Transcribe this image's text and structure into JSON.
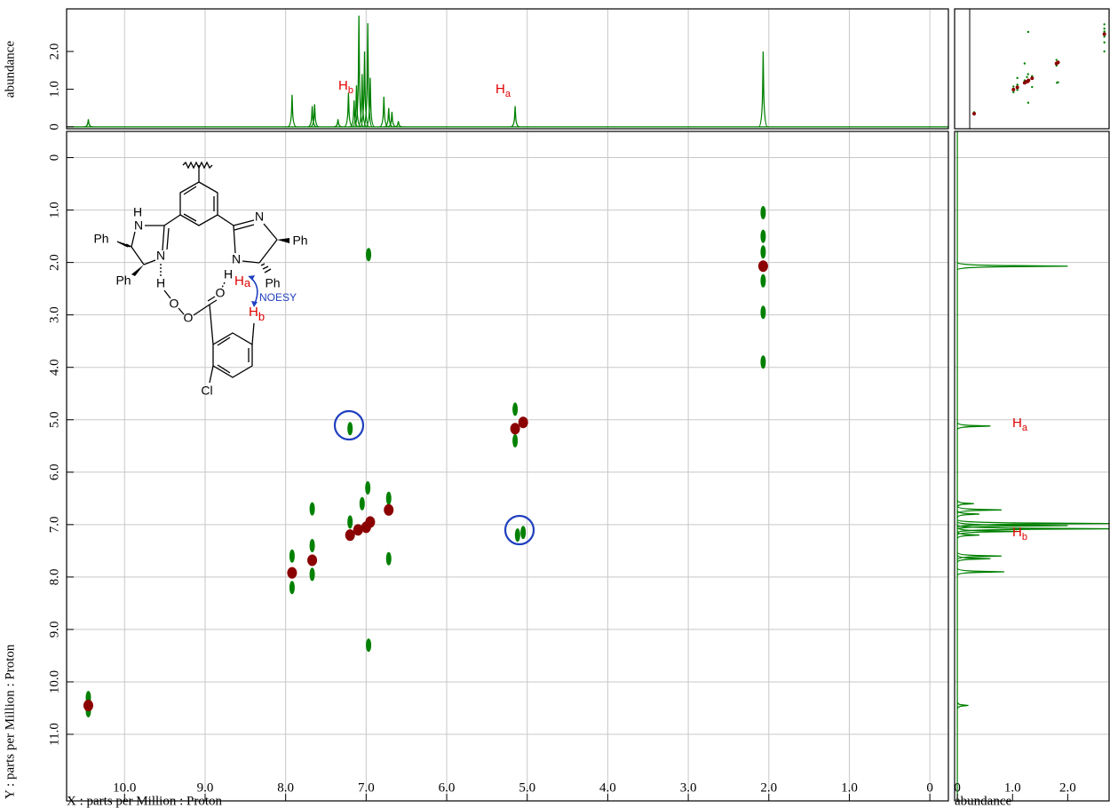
{
  "chart_data": {
    "type": "contour",
    "xlabel": "X : parts per Million : Proton",
    "ylabel": "Y : parts per Million : Proton",
    "xlim": [
      10.72,
      -0.23
    ],
    "ylim": [
      -0.5,
      12.27
    ],
    "xticks": [
      {
        "value": 10,
        "label": "10.0"
      },
      {
        "value": 9,
        "label": "9.0"
      },
      {
        "value": 8,
        "label": "8.0"
      },
      {
        "value": 7,
        "label": "7.0"
      },
      {
        "value": 6,
        "label": "6.0"
      },
      {
        "value": 5,
        "label": "5.0"
      },
      {
        "value": 4,
        "label": "4.0"
      },
      {
        "value": 3,
        "label": "3.0"
      },
      {
        "value": 2,
        "label": "2.0"
      },
      {
        "value": 1,
        "label": "1.0"
      },
      0
    ],
    "yticks": [
      0,
      {
        "value": 1,
        "label": "1.0"
      },
      {
        "value": 2,
        "label": "2.0"
      },
      {
        "value": 3,
        "label": "3.0"
      },
      {
        "value": 4,
        "label": "4.0"
      },
      {
        "value": 5,
        "label": "5.0"
      },
      {
        "value": 6,
        "label": "6.0"
      },
      {
        "value": 7,
        "label": "7.0"
      },
      {
        "value": 8,
        "label": "8.0"
      },
      {
        "value": 9,
        "label": "9.0"
      },
      {
        "value": 10,
        "label": "10.0"
      },
      {
        "value": 11,
        "label": "11.0"
      }
    ],
    "grid": true,
    "series": [
      {
        "color": "#008000",
        "x": [
          10.45,
          10.45,
          7.92,
          7.92,
          7.67,
          7.67,
          7.67,
          7.2,
          7.2,
          7.05,
          6.98,
          6.97,
          6.97,
          6.72,
          6.72,
          5.15,
          5.15,
          5.12,
          5.05,
          2.07,
          2.07,
          2.07,
          2.07,
          2.07,
          2.07
        ],
        "y": [
          10.3,
          10.55,
          7.6,
          8.2,
          6.7,
          7.4,
          7.95,
          5.17,
          6.95,
          6.6,
          6.3,
          1.85,
          9.3,
          6.5,
          7.65,
          4.8,
          5.4,
          7.2,
          7.15,
          1.5,
          1.8,
          2.35,
          1.05,
          2.95,
          3.9
        ]
      },
      {
        "color": "#8b0000",
        "x": [
          10.45,
          7.92,
          7.67,
          7.2,
          7.1,
          7.0,
          6.95,
          6.72,
          5.15,
          5.05,
          2.07
        ],
        "y": [
          10.45,
          7.92,
          7.68,
          7.2,
          7.1,
          7.05,
          6.95,
          6.72,
          5.17,
          5.05,
          2.07
        ]
      }
    ],
    "top_spectrum": {
      "ylabel": "abundance",
      "color": "#008000",
      "ylim": [
        -0.05,
        3.13
      ],
      "yticks": [
        0,
        {
          "value": 1,
          "label": "1.0"
        },
        {
          "value": 2,
          "label": "2.0"
        }
      ],
      "x": [
        10.45,
        7.92,
        7.67,
        7.64,
        7.35,
        7.22,
        7.15,
        7.12,
        7.09,
        7.05,
        7.02,
        6.98,
        6.95,
        6.78,
        6.72,
        6.68,
        6.6,
        5.15,
        2.07
      ],
      "values": [
        0.2,
        0.85,
        0.55,
        0.6,
        0.2,
        0.9,
        0.7,
        1.1,
        2.95,
        1.4,
        2.0,
        2.75,
        1.3,
        0.8,
        0.5,
        0.4,
        0.15,
        0.55,
        2.0
      ]
    },
    "side_spectrum": {
      "xlabel": "abundance",
      "color": "#008000",
      "xlim": [
        -0.05,
        2.75
      ],
      "xticks": [
        0,
        {
          "value": 1,
          "label": "1.0"
        },
        {
          "value": 2,
          "label": "2.0"
        }
      ],
      "y": [
        10.45,
        7.9,
        7.65,
        7.6,
        7.2,
        7.13,
        7.08,
        7.02,
        6.98,
        6.8,
        6.72,
        6.6,
        5.12,
        2.07
      ],
      "values": [
        0.2,
        0.85,
        0.6,
        0.8,
        0.4,
        1.1,
        2.9,
        2.0,
        2.9,
        0.4,
        0.8,
        0.3,
        0.6,
        2.0
      ]
    },
    "annotations": [
      {
        "text": "H",
        "subscript": "b"
      },
      {
        "text": "H",
        "subscript": "a"
      },
      {
        "text": "H",
        "subscript": "a"
      },
      {
        "text": "H",
        "subscript": "b"
      }
    ]
  },
  "structure": {
    "labels": [
      "H",
      "N",
      "Ph",
      "Ph",
      "N",
      "H",
      "O",
      "O",
      "O",
      "N",
      "Ph",
      "N",
      "Ph",
      "H",
      "H",
      "a",
      "NOESY",
      "H",
      "b",
      "Cl"
    ]
  }
}
